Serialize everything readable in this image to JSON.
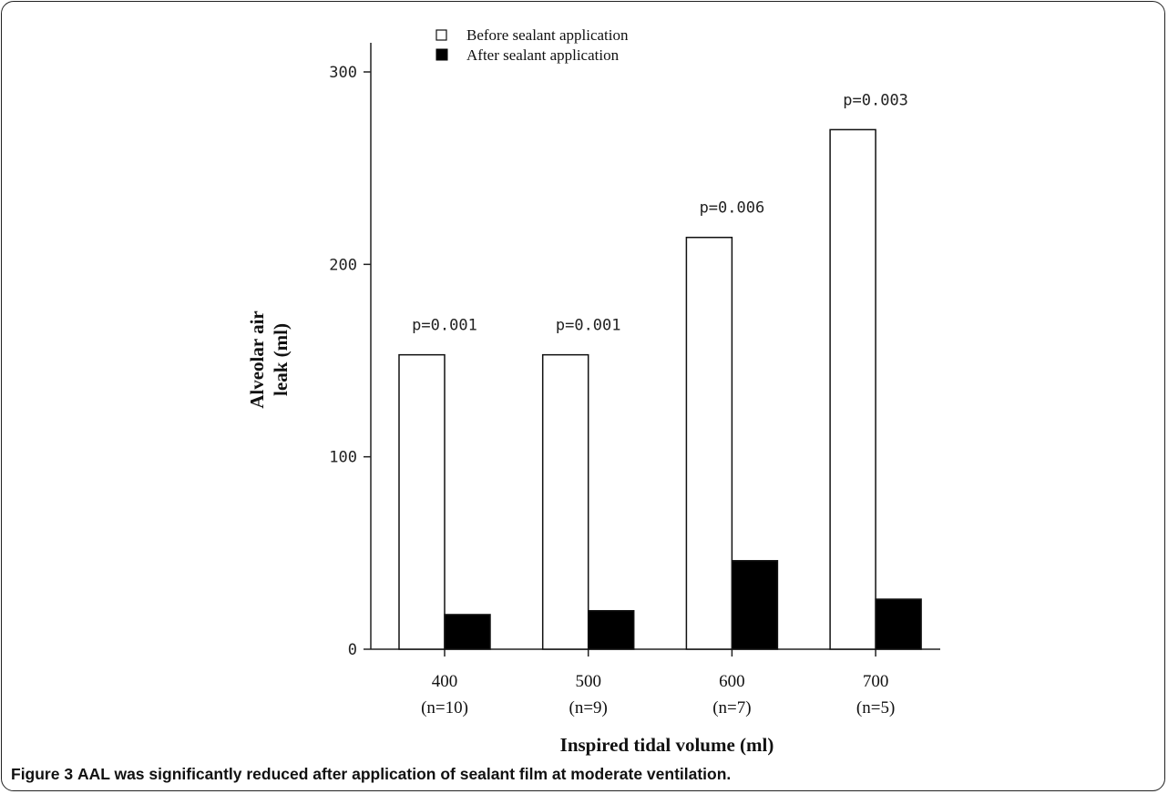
{
  "chart_data": {
    "type": "bar",
    "categories": [
      "400",
      "500",
      "600",
      "700"
    ],
    "category_sublabels": [
      "(n=10)",
      "(n=9)",
      "(n=7)",
      "(n=5)"
    ],
    "series": [
      {
        "name": "Before sealant application",
        "values": [
          153,
          153,
          214,
          270
        ],
        "color": "#ffffff"
      },
      {
        "name": "After sealant application",
        "values": [
          18,
          20,
          46,
          26
        ],
        "color": "#000000"
      }
    ],
    "p_values": [
      "p=0.001",
      "p=0.001",
      "p=0.006",
      "p=0.003"
    ],
    "xlabel": "Inspired tidal volume (ml)",
    "ylabel_lines": [
      "Alveolar air",
      "leak (ml)"
    ],
    "ylim": [
      0,
      300
    ],
    "yticks": [
      0,
      100,
      200,
      300
    ],
    "legend_position": "top"
  },
  "caption": {
    "label": "Figure 3",
    "text": "AAL was significantly reduced after application of sealant film at moderate ventilation."
  }
}
